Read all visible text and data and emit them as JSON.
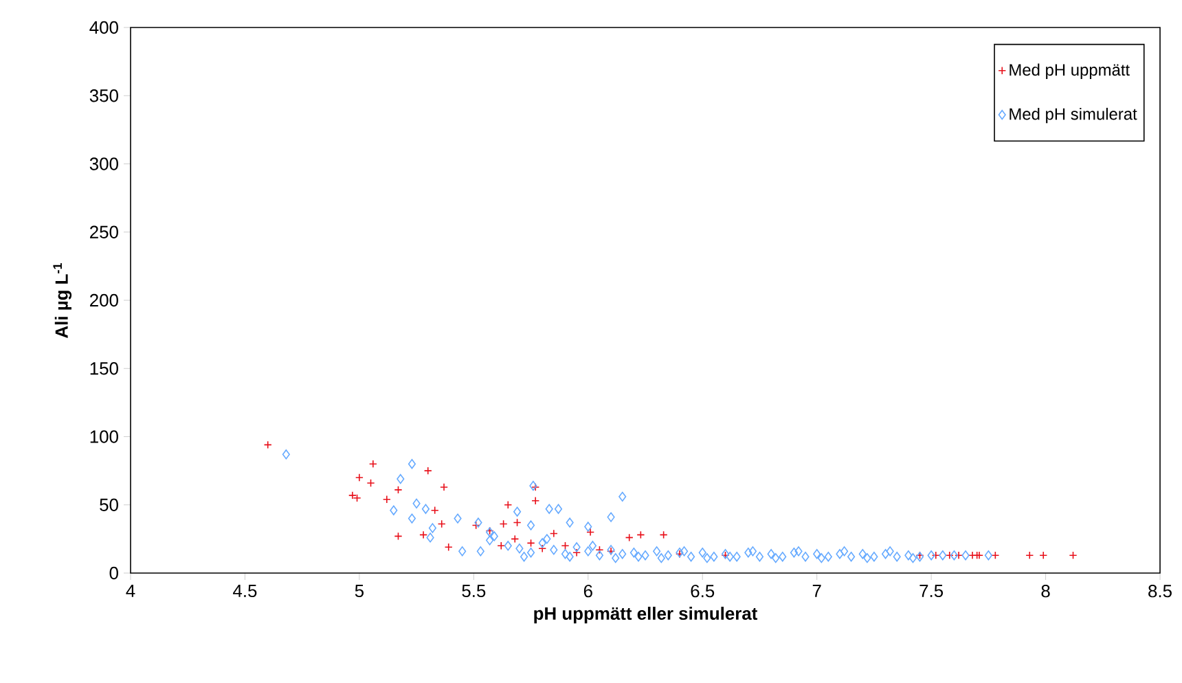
{
  "chart_data": {
    "type": "scatter",
    "xlabel": "pH uppmätt eller simulerat",
    "ylabel": "Ali µg L$^{-1}$",
    "xlim": [
      4,
      8.5
    ],
    "xticks": [
      4,
      4.5,
      5,
      5.5,
      6,
      6.5,
      7,
      7.5,
      8,
      8.5
    ],
    "ylim": [
      0,
      400
    ],
    "yticks": [
      0,
      50,
      100,
      150,
      200,
      250,
      300,
      350,
      400
    ],
    "grid": false,
    "legend": "top right",
    "series": [
      {
        "name": "Med pH uppmätt",
        "color": "#e8101a",
        "marker": "cross",
        "x": [
          4.6,
          5.06,
          5.0,
          5.05,
          4.97,
          4.99,
          5.12,
          5.17,
          5.17,
          5.3,
          5.37,
          5.33,
          5.36,
          5.28,
          5.39,
          5.51,
          5.57,
          5.77,
          5.77,
          5.65,
          5.63,
          5.69,
          5.62,
          6.33,
          6.23,
          6.18,
          6.01,
          5.85,
          5.75,
          5.68,
          5.8,
          5.9,
          5.95,
          6.05,
          6.1,
          6.4,
          6.6,
          7.45,
          7.52,
          7.58,
          7.62,
          7.68,
          7.7,
          7.71,
          7.78,
          7.93,
          7.99,
          8.12
        ],
        "values": [
          94,
          80,
          70,
          66,
          57,
          55,
          54,
          61,
          27,
          75,
          63,
          46,
          36,
          28,
          19,
          35,
          31,
          63,
          53,
          50,
          36,
          37,
          20,
          28,
          28,
          26,
          30,
          29,
          22,
          25,
          18,
          20,
          15,
          17,
          16,
          14,
          13,
          13,
          13,
          13,
          13,
          13,
          13,
          13,
          13,
          13,
          13,
          13
        ]
      },
      {
        "name": "Med pH simulerat",
        "color": "#66aaff",
        "marker": "diamond",
        "x": [
          4.68,
          5.23,
          5.18,
          5.15,
          5.23,
          5.25,
          5.29,
          5.32,
          5.31,
          5.43,
          5.52,
          5.45,
          5.53,
          5.57,
          5.76,
          6.15,
          6.1,
          5.69,
          5.83,
          5.87,
          5.92,
          6.0,
          5.75,
          5.59,
          5.57,
          5.65,
          5.7,
          5.75,
          5.8,
          5.85,
          5.9,
          5.95,
          6.0,
          6.05,
          6.1,
          6.15,
          6.2,
          6.25,
          6.3,
          6.35,
          6.4,
          6.45,
          6.5,
          6.55,
          6.6,
          6.65,
          6.7,
          6.75,
          6.8,
          6.85,
          6.9,
          6.95,
          7.0,
          7.05,
          7.1,
          7.15,
          7.2,
          7.25,
          7.3,
          7.35,
          7.4,
          7.45,
          7.5,
          7.55,
          7.6,
          7.65,
          7.75,
          5.72,
          5.82,
          5.92,
          6.02,
          6.12,
          6.22,
          6.32,
          6.42,
          6.52,
          6.62,
          6.72,
          6.82,
          6.92,
          7.02,
          7.12,
          7.22,
          7.32,
          7.42
        ],
        "values": [
          87,
          80,
          69,
          46,
          40,
          51,
          47,
          33,
          26,
          40,
          37,
          16,
          16,
          24,
          64,
          56,
          41,
          45,
          47,
          47,
          37,
          34,
          35,
          27,
          30,
          20,
          18,
          15,
          22,
          17,
          14,
          19,
          16,
          13,
          17,
          14,
          15,
          13,
          16,
          13,
          15,
          12,
          15,
          12,
          14,
          12,
          15,
          12,
          14,
          12,
          15,
          12,
          14,
          12,
          14,
          12,
          14,
          12,
          14,
          12,
          13,
          12,
          13,
          13,
          13,
          13,
          13,
          12,
          25,
          12,
          20,
          11,
          12,
          11,
          16,
          11,
          12,
          16,
          11,
          16,
          11,
          16,
          11,
          16,
          11
        ]
      }
    ]
  }
}
